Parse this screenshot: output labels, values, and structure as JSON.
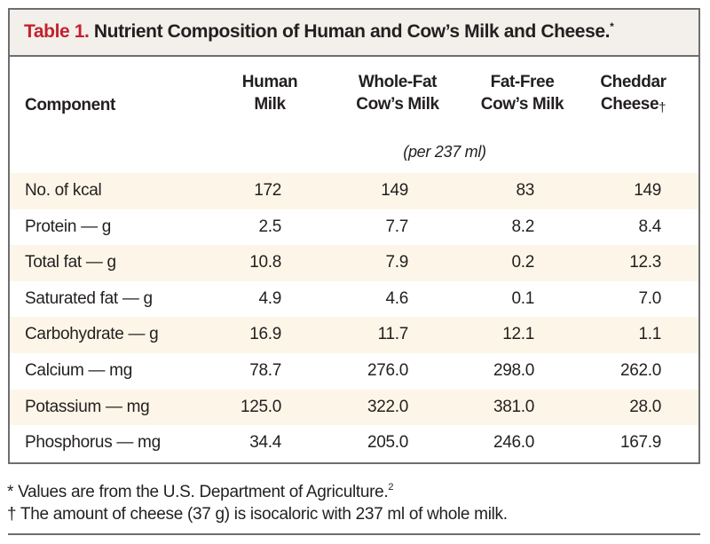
{
  "title": {
    "label": "Table 1.",
    "text": " Nutrient Composition of Human and Cow’s Milk and Cheese.",
    "footnote_mark": "*"
  },
  "columns": {
    "component": "Component",
    "human_milk": [
      "Human",
      "Milk"
    ],
    "whole_fat": [
      "Whole-Fat",
      "Cow’s Milk"
    ],
    "fat_free": [
      "Fat-Free",
      "Cow’s Milk"
    ],
    "cheddar": [
      "Cheddar",
      "Cheese"
    ],
    "cheddar_mark": "†"
  },
  "unit_note": "(per 237 ml)",
  "rows": [
    {
      "component": "No. of kcal",
      "values": [
        "172",
        "149",
        "83",
        "149"
      ]
    },
    {
      "component": "Protein — g",
      "values": [
        "2.5",
        "7.7",
        "8.2",
        "8.4"
      ]
    },
    {
      "component": "Total fat — g",
      "values": [
        "10.8",
        "7.9",
        "0.2",
        "12.3"
      ]
    },
    {
      "component": "Saturated fat — g",
      "values": [
        "4.9",
        "4.6",
        "0.1",
        "7.0"
      ]
    },
    {
      "component": "Carbohydrate — g",
      "values": [
        "16.9",
        "11.7",
        "12.1",
        "1.1"
      ]
    },
    {
      "component": "Calcium — mg",
      "values": [
        "78.7",
        "276.0",
        "298.0",
        "262.0"
      ]
    },
    {
      "component": "Potassium — mg",
      "values": [
        "125.0",
        "322.0",
        "381.0",
        "28.0"
      ]
    },
    {
      "component": "Phosphorus — mg",
      "values": [
        "34.4",
        "205.0",
        "246.0",
        "167.9"
      ]
    }
  ],
  "footnotes": [
    {
      "mark": "*",
      "text": " Values are from the U.S. Department of Agriculture.",
      "ref": "2"
    },
    {
      "mark": "†",
      "text": " The amount of cheese (37 g) is isocaloric with 237 ml of whole milk.",
      "ref": ""
    }
  ],
  "colors": {
    "title_label": "#c4212e",
    "title_bar_bg": "#f3efea",
    "shaded_row_bg": "#fdf6e8",
    "border": "#6d6e70",
    "text": "#231f20"
  }
}
